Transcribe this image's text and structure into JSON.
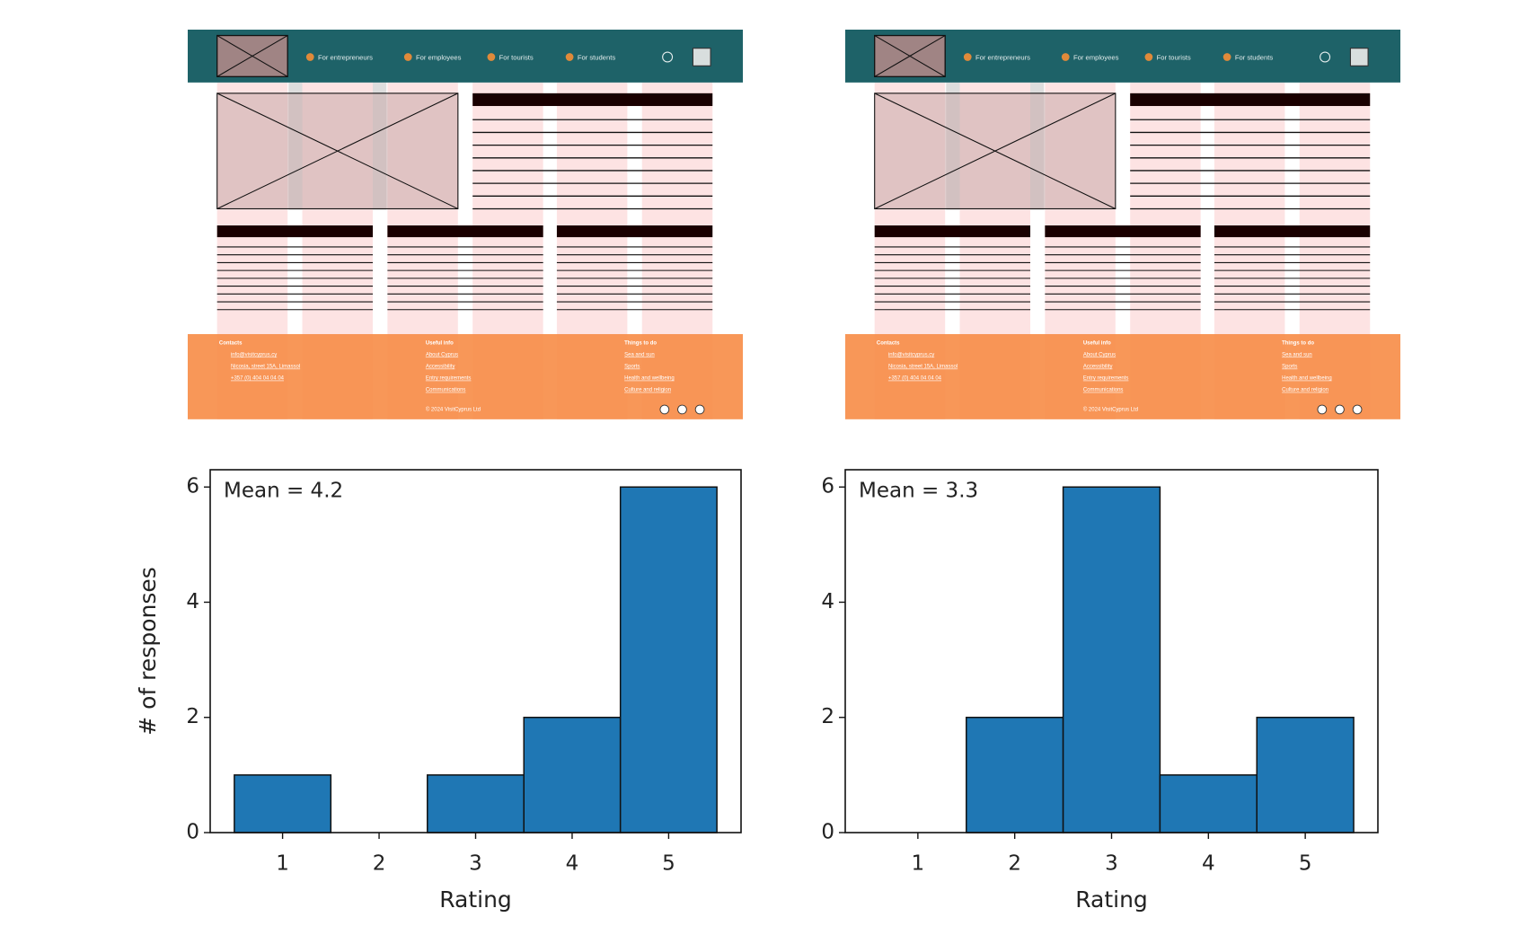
{
  "wireframes": [
    {
      "nav": [
        "For entrepreneurs",
        "For employees",
        "For tourists",
        "For students"
      ],
      "footer": [
        {
          "title": "Contacts",
          "items": [
            "info@visitcyprus.cy",
            "Nicosia, street 15A, Limassol",
            "+357 (0) 404 04 04 04"
          ]
        },
        {
          "title": "Useful info",
          "items": [
            "About Cyprus",
            "Accessibility",
            "Entry requirements",
            "Communications"
          ]
        },
        {
          "title": "Things to do",
          "items": [
            "Sea and sun",
            "Sports",
            "Health and wellbeing",
            "Culture and religion"
          ]
        }
      ],
      "copyright": "© 2024 VisitCyprus Ltd"
    },
    {
      "nav": [
        "For entrepreneurs",
        "For employees",
        "For tourists",
        "For students"
      ],
      "footer": [
        {
          "title": "Contacts",
          "items": [
            "info@visitcyprus.cy",
            "Nicosia, street 15A, Limassol",
            "+357 (0) 404 04 04 04"
          ]
        },
        {
          "title": "Useful info",
          "items": [
            "About Cyprus",
            "Accessibility",
            "Entry requirements",
            "Communications"
          ]
        },
        {
          "title": "Things to do",
          "items": [
            "Sea and sun",
            "Sports",
            "Health and wellbeing",
            "Culture and religion"
          ]
        }
      ],
      "copyright": "© 2024 VisitCyprus Ltd"
    }
  ],
  "chart_data": [
    {
      "type": "histogram",
      "annotation": "Mean = 4.2",
      "xlabel": "Rating",
      "ylabel": "# of responses",
      "bins": [
        0.5,
        1.5,
        2.5,
        3.5,
        4.5,
        5.5
      ],
      "values": [
        1,
        0,
        1,
        2,
        6
      ],
      "color": "#1f77b4",
      "xlim": [
        0.25,
        5.75
      ],
      "ylim": [
        0,
        6.3
      ],
      "xticks": [
        1,
        2,
        3,
        4,
        5
      ],
      "yticks": [
        0,
        2,
        4,
        6
      ]
    },
    {
      "type": "histogram",
      "annotation": "Mean = 3.3",
      "xlabel": "Rating",
      "bins": [
        0.5,
        1.5,
        2.5,
        3.5,
        4.5,
        5.5
      ],
      "values": [
        0,
        2,
        6,
        1,
        2
      ],
      "color": "#1f77b4",
      "xlim": [
        0.25,
        5.75
      ],
      "ylim": [
        0,
        6.3
      ],
      "xticks": [
        1,
        2,
        3,
        4,
        5
      ],
      "yticks": [
        0,
        2,
        4,
        6
      ]
    }
  ]
}
